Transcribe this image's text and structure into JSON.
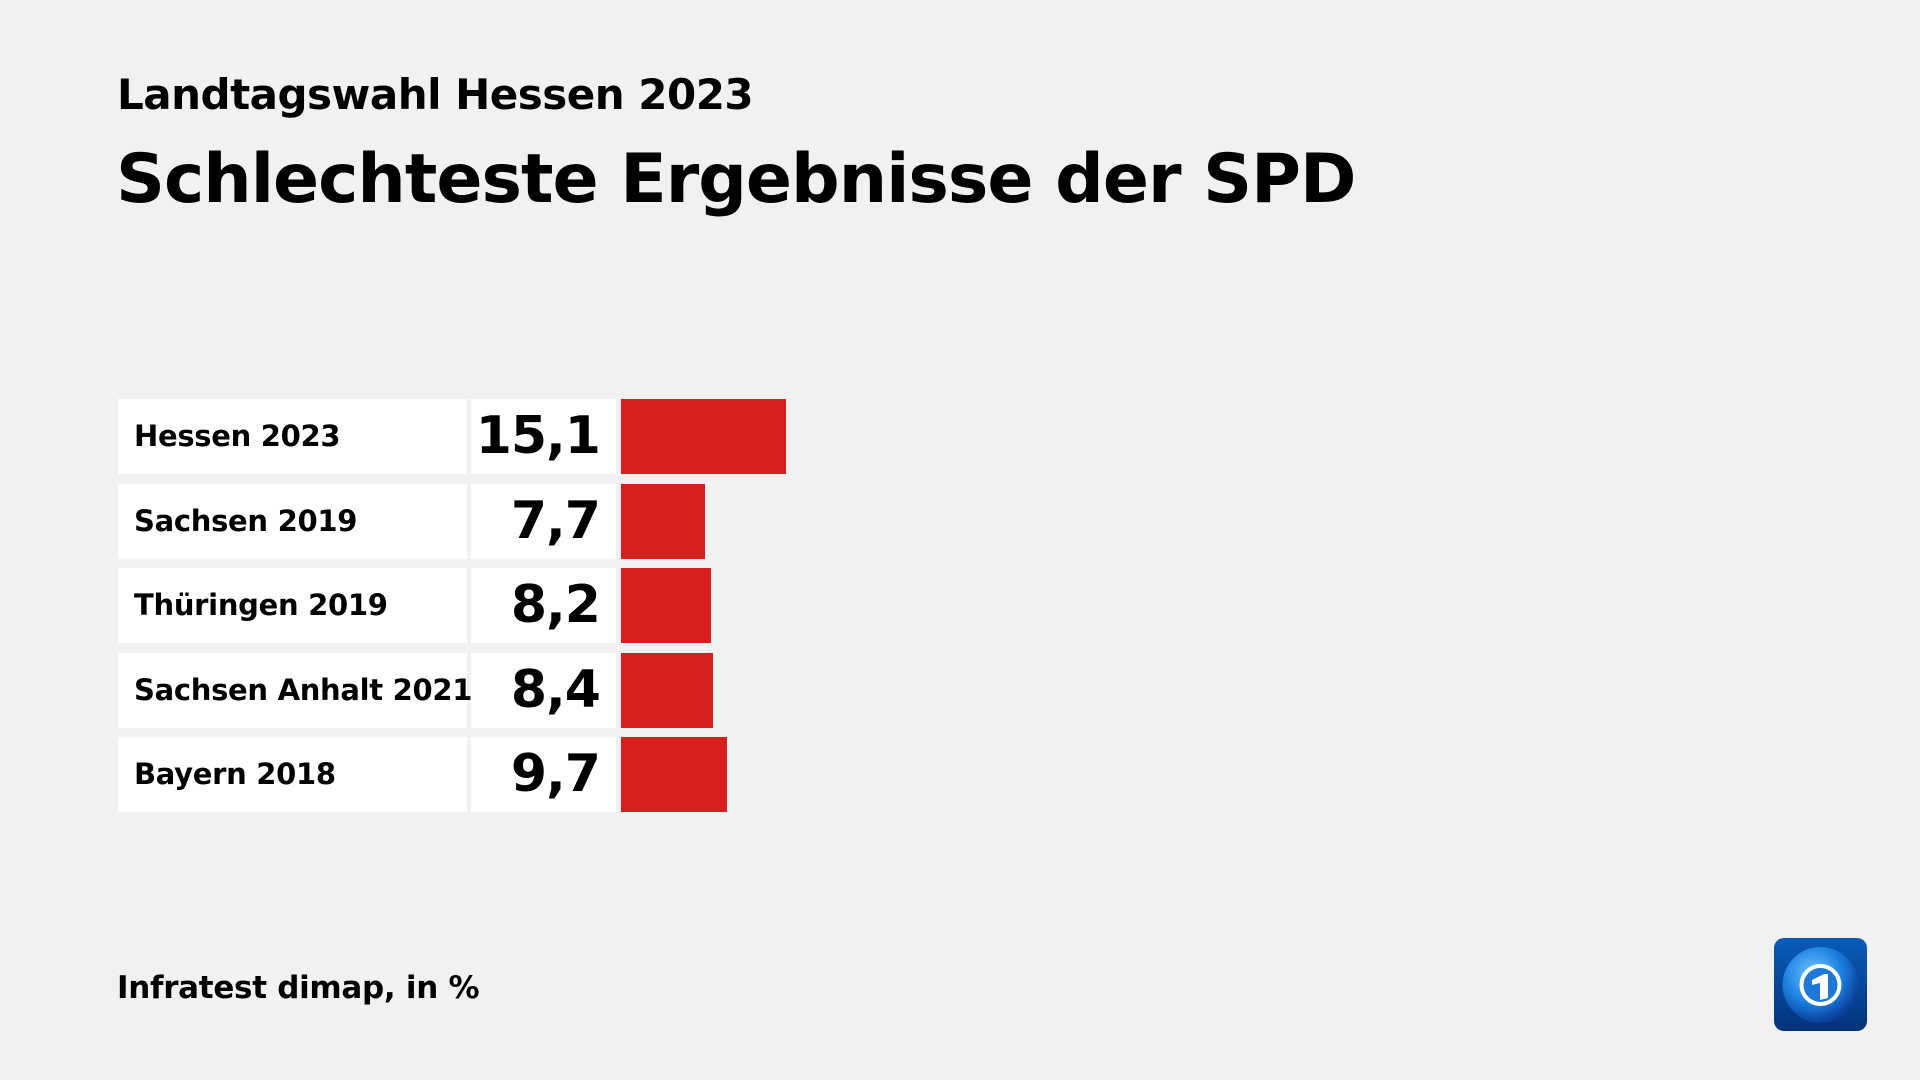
{
  "header": {
    "subtitle": "Landtagswahl Hessen 2023",
    "title": "Schlechteste Ergebnisse der SPD"
  },
  "footer": {
    "source": "Infratest dimap, in %"
  },
  "logo": {
    "name": "tagesschau-logo",
    "text": "1"
  },
  "chart_data": {
    "type": "bar",
    "orientation": "horizontal",
    "categories": [
      "Hessen 2023",
      "Sachsen 2019",
      "Thüringen 2019",
      "Sachsen Anhalt 2021",
      "Bayern 2018"
    ],
    "values": [
      15.1,
      7.7,
      8.2,
      8.4,
      9.7
    ],
    "value_labels": [
      "15,1",
      "7,7",
      "8,2",
      "8,4",
      "9,7"
    ],
    "bar_color": "#d62020",
    "unit": "%",
    "grid": false
  }
}
